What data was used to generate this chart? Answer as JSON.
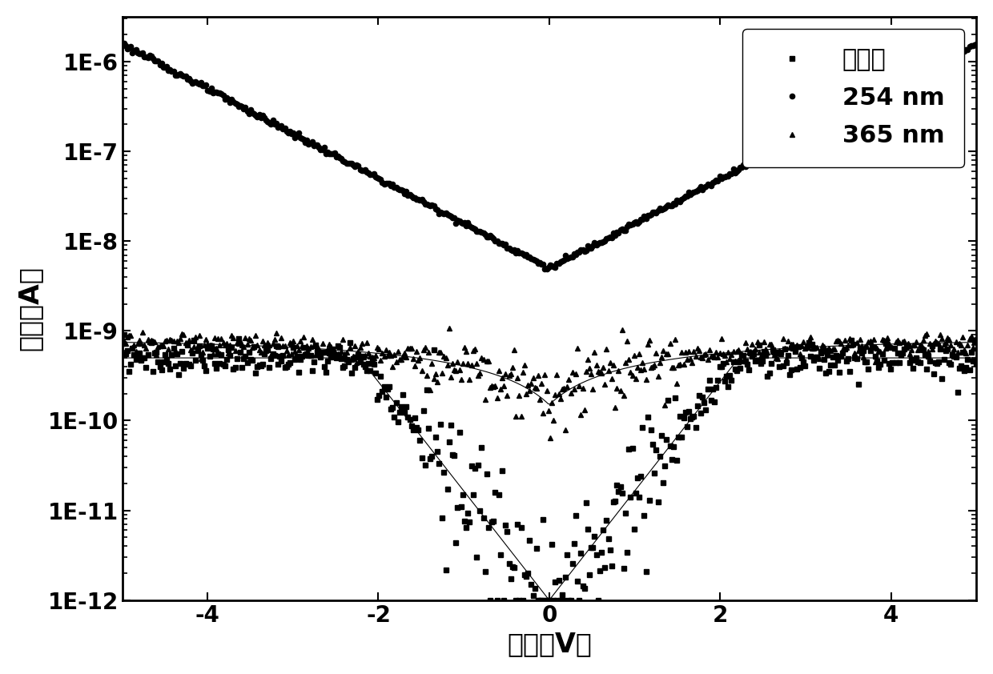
{
  "title": "",
  "xlabel": "电压（V）",
  "ylabel": "电流（A）",
  "xlim": [
    -5,
    5
  ],
  "legend_labels": [
    "无光照",
    "254 nm",
    "365 nm"
  ],
  "line_color": "#000000",
  "background_color": "#ffffff",
  "xlabel_fontsize": 24,
  "ylabel_fontsize": 24,
  "tick_fontsize": 20,
  "legend_fontsize": 22,
  "ytick_positions": [
    1e-12,
    1e-11,
    1e-10,
    1e-09,
    1e-08,
    1e-07,
    1e-06
  ],
  "ytick_labels": [
    "1E-12",
    "1E-11",
    "1E-10",
    "1E-9",
    "1E-8",
    "1E-7",
    "1E-6"
  ],
  "xtick_positions": [
    -4,
    -2,
    0,
    2,
    4
  ]
}
